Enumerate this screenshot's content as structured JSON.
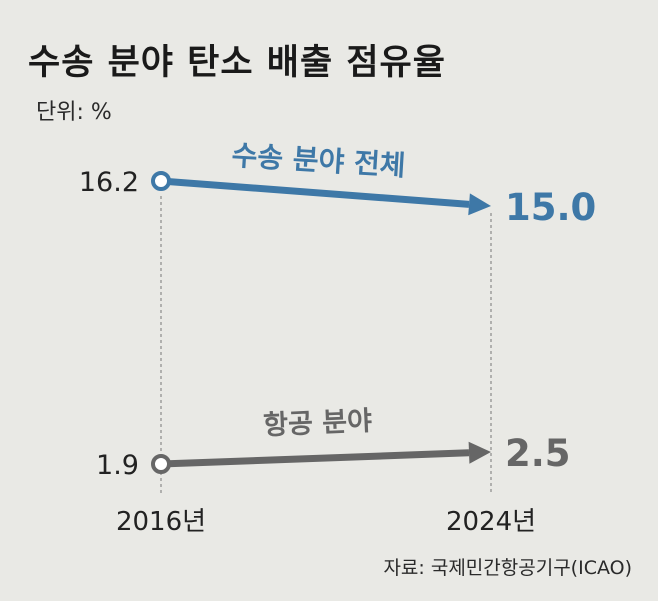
{
  "title": "수송 분야 탄소 배출 점유율",
  "unit": "단위: %",
  "source": "자료: 국제민간항공기구(ICAO)",
  "chart_data": {
    "type": "line",
    "categories": [
      "2016년",
      "2024년"
    ],
    "series": [
      {
        "name": "수송 분야 전체",
        "values": [
          16.2,
          15.0
        ],
        "value_labels": [
          "16.2",
          "15.0"
        ],
        "color": "#3e78a7"
      },
      {
        "name": "항공 분야",
        "values": [
          1.9,
          2.5
        ],
        "value_labels": [
          "1.9",
          "2.5"
        ],
        "color": "#666666"
      }
    ],
    "grid": false,
    "legend": "inline"
  }
}
